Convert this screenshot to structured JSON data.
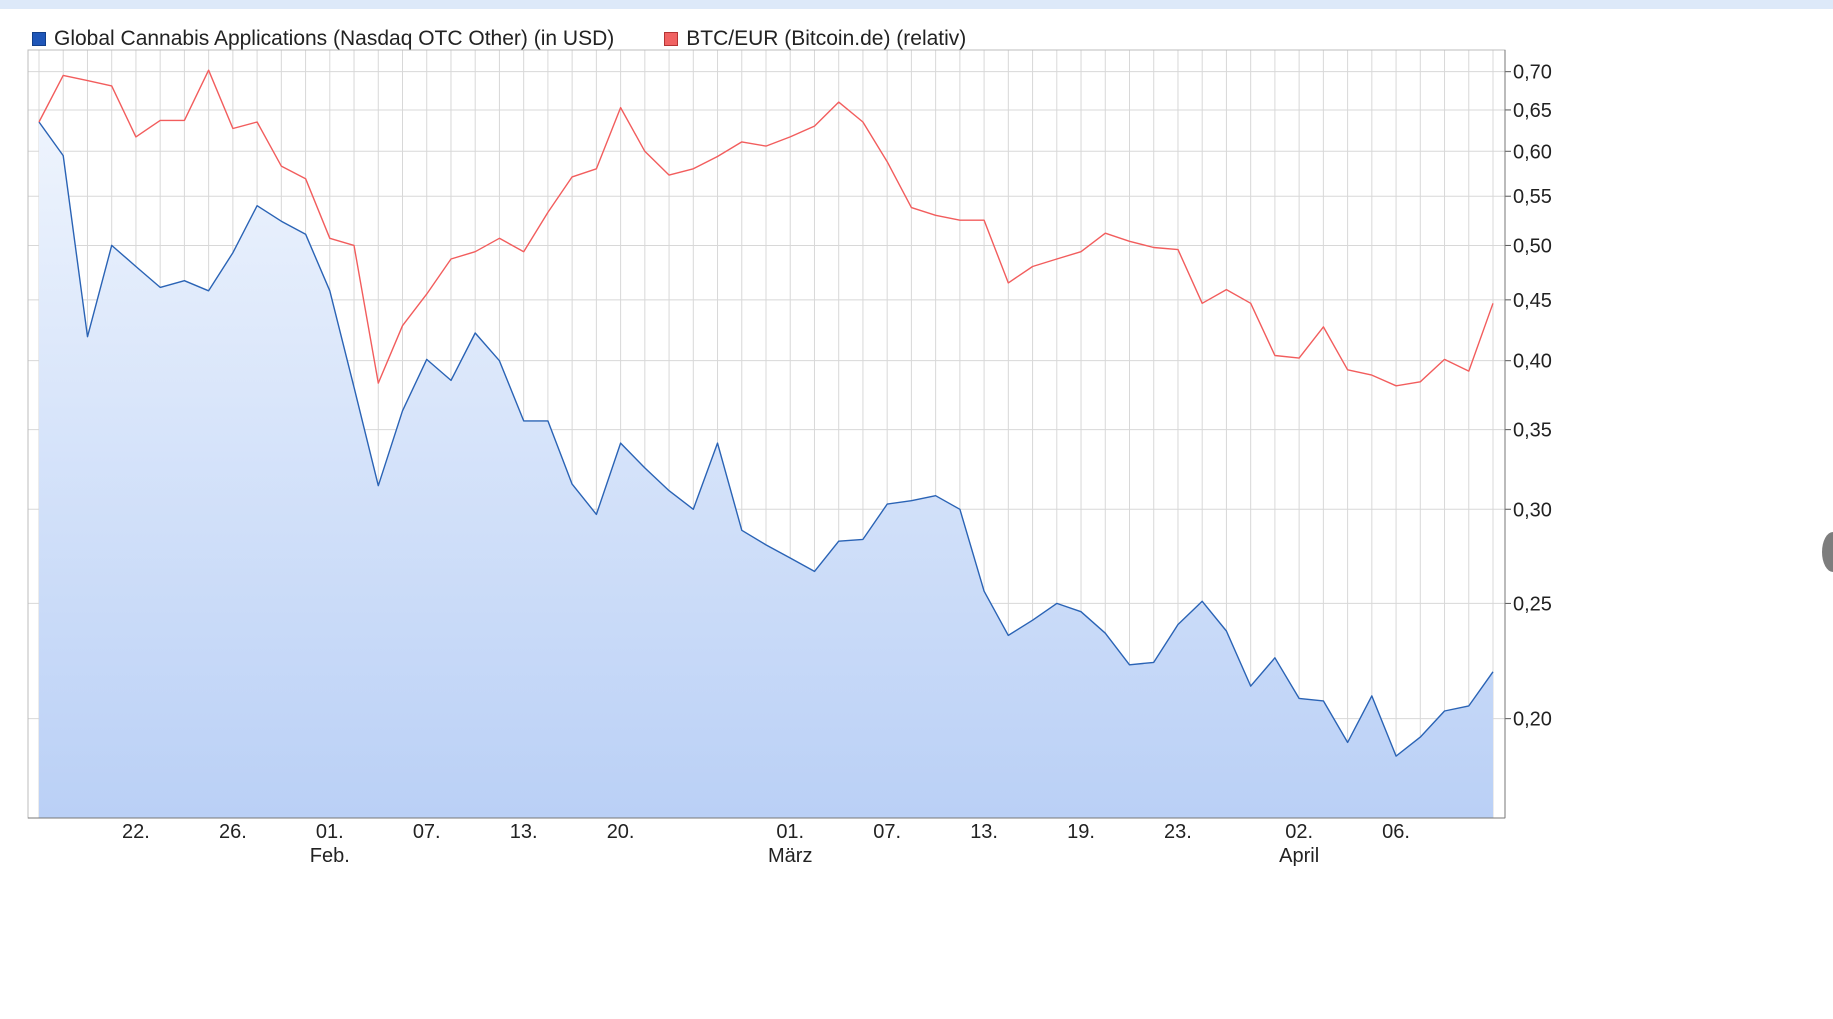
{
  "colors": {
    "series_a_line": "#2a63b5",
    "series_a_swatch": "#1f56b8",
    "series_b_line": "#f25d5d",
    "series_b_swatch": "#f06262",
    "grid": "#d8d8d8",
    "fill_top": "#eef4fd",
    "fill_bottom": "#bad0f6"
  },
  "chart_data": {
    "type": "area",
    "yscale": "log",
    "ylim": [
      0.165,
      0.73
    ],
    "grid": true,
    "legend_position": "top-left",
    "y_ticks": [
      {
        "value": 0.7,
        "label": "0,70"
      },
      {
        "value": 0.65,
        "label": "0,65"
      },
      {
        "value": 0.6,
        "label": "0,60"
      },
      {
        "value": 0.55,
        "label": "0,55"
      },
      {
        "value": 0.5,
        "label": "0,50"
      },
      {
        "value": 0.45,
        "label": "0,45"
      },
      {
        "value": 0.4,
        "label": "0,40"
      },
      {
        "value": 0.35,
        "label": "0,35"
      },
      {
        "value": 0.3,
        "label": "0,30"
      },
      {
        "value": 0.25,
        "label": "0,25"
      },
      {
        "value": 0.2,
        "label": "0,20"
      }
    ],
    "x_ticks": [
      {
        "index": 4,
        "label": "22.",
        "month": ""
      },
      {
        "index": 8,
        "label": "26.",
        "month": ""
      },
      {
        "index": 12,
        "label": "01.",
        "month": "Feb."
      },
      {
        "index": 16,
        "label": "07.",
        "month": ""
      },
      {
        "index": 20,
        "label": "13.",
        "month": ""
      },
      {
        "index": 24,
        "label": "20.",
        "month": ""
      },
      {
        "index": 31,
        "label": "01.",
        "month": "März"
      },
      {
        "index": 35,
        "label": "07.",
        "month": ""
      },
      {
        "index": 39,
        "label": "13.",
        "month": ""
      },
      {
        "index": 43,
        "label": "19.",
        "month": ""
      },
      {
        "index": 47,
        "label": "23.",
        "month": ""
      },
      {
        "index": 52,
        "label": "02.",
        "month": "April"
      },
      {
        "index": 56,
        "label": "06.",
        "month": ""
      }
    ],
    "series": [
      {
        "name": "Global Cannabis Applications (Nasdaq OTC Other) (in USD)",
        "style": "area",
        "values": [
          0.635,
          0.595,
          0.419,
          0.5,
          0.48,
          0.461,
          0.467,
          0.458,
          0.493,
          0.54,
          0.524,
          0.511,
          0.458,
          0.38,
          0.314,
          0.363,
          0.401,
          0.385,
          0.422,
          0.4,
          0.356,
          0.356,
          0.315,
          0.297,
          0.341,
          0.325,
          0.311,
          0.3,
          0.341,
          0.288,
          0.28,
          0.273,
          0.266,
          0.282,
          0.283,
          0.303,
          0.305,
          0.308,
          0.3,
          0.256,
          0.235,
          0.242,
          0.25,
          0.246,
          0.236,
          0.222,
          0.223,
          0.24,
          0.251,
          0.237,
          0.213,
          0.225,
          0.208,
          0.207,
          0.191,
          0.209,
          0.186,
          0.193,
          0.203,
          0.205,
          0.219
        ]
      },
      {
        "name": "BTC/EUR (Bitcoin.de) (relativ)",
        "style": "line",
        "values": [
          0.635,
          0.695,
          0.688,
          0.681,
          0.617,
          0.637,
          0.637,
          0.702,
          0.627,
          0.635,
          0.583,
          0.569,
          0.507,
          0.5,
          0.383,
          0.428,
          0.455,
          0.487,
          0.494,
          0.507,
          0.494,
          0.533,
          0.571,
          0.58,
          0.653,
          0.6,
          0.573,
          0.58,
          0.594,
          0.611,
          0.606,
          0.617,
          0.63,
          0.66,
          0.635,
          0.588,
          0.538,
          0.53,
          0.525,
          0.525,
          0.465,
          0.48,
          0.487,
          0.494,
          0.512,
          0.504,
          0.498,
          0.496,
          0.447,
          0.459,
          0.447,
          0.404,
          0.402,
          0.427,
          0.393,
          0.389,
          0.381,
          0.384,
          0.401,
          0.392,
          0.447
        ]
      }
    ]
  }
}
